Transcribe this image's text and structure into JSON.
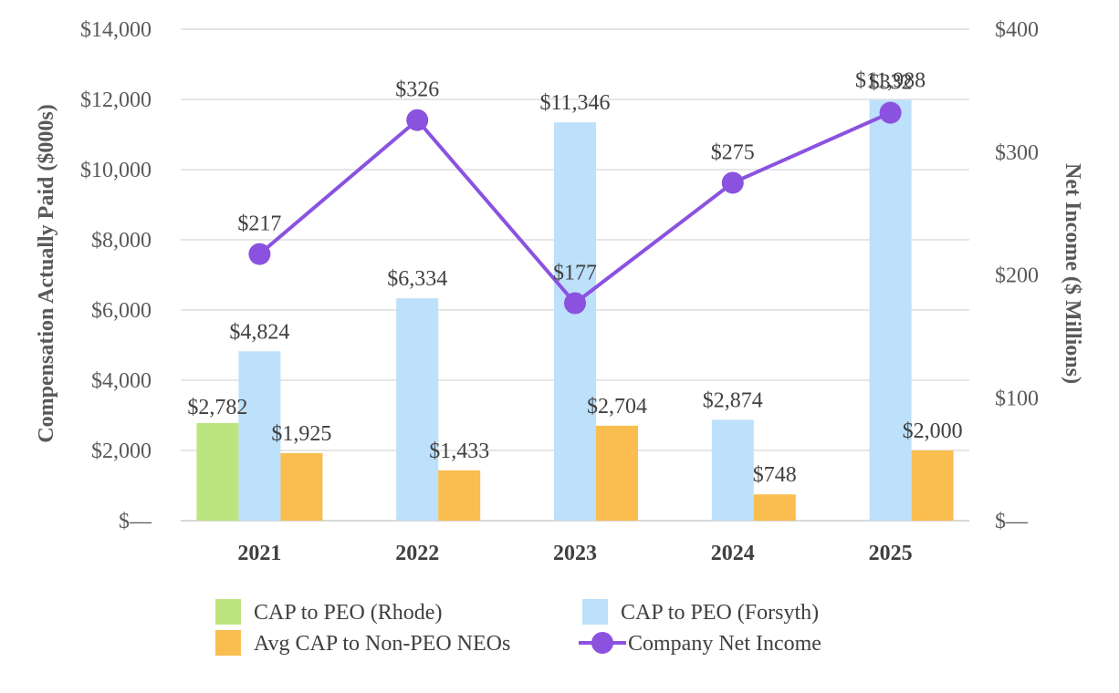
{
  "chart_data": {
    "type": "bar",
    "title": "",
    "categories": [
      "2021",
      "2022",
      "2023",
      "2024",
      "2025"
    ],
    "y_left": {
      "label": "Compensation Actually Paid ($000s)",
      "lim": [
        0,
        14000
      ],
      "ticks": [
        0,
        2000,
        4000,
        6000,
        8000,
        10000,
        12000,
        14000
      ],
      "tick_labels": [
        "$—",
        "$2,000",
        "$4,000",
        "$6,000",
        "$8,000",
        "$10,000",
        "$12,000",
        "$14,000"
      ]
    },
    "y_right": {
      "label": "Net Income ($ Millions)",
      "lim": [
        0,
        400
      ],
      "ticks": [
        0,
        100,
        200,
        300,
        400
      ],
      "tick_labels": [
        "$—",
        "$100",
        "$200",
        "$300",
        "$400"
      ]
    },
    "series": [
      {
        "name": "CAP to PEO (Rhode)",
        "type": "bar",
        "axis": "left",
        "color": "#bde57f",
        "values": [
          2782,
          null,
          null,
          null,
          null
        ],
        "labels": [
          "$2,782",
          "",
          "",
          "",
          ""
        ]
      },
      {
        "name": "CAP to PEO (Forsyth)",
        "type": "bar",
        "axis": "left",
        "color": "#bde0fb",
        "values": [
          4824,
          6334,
          11346,
          2874,
          11988
        ],
        "labels": [
          "$4,824",
          "$6,334",
          "$11,346",
          "$2,874",
          "$11,988"
        ]
      },
      {
        "name": "Avg CAP to Non-PEO NEOs",
        "type": "bar",
        "axis": "left",
        "color": "#f9be4f",
        "values": [
          1925,
          1433,
          2704,
          748,
          2000
        ],
        "labels": [
          "$1,925",
          "$1,433",
          "$2,704",
          "$748",
          "$2,000"
        ]
      },
      {
        "name": "Company Net Income",
        "type": "line",
        "axis": "right",
        "color": "#8b52e0",
        "values": [
          217,
          326,
          177,
          275,
          332
        ],
        "labels": [
          "$217",
          "$326",
          "$177",
          "$275",
          "$332"
        ]
      }
    ],
    "legend": {
      "position": "bottom",
      "items": [
        {
          "name": "CAP to PEO (Rhode)",
          "kind": "bar",
          "color": "#bde57f"
        },
        {
          "name": "CAP to PEO (Forsyth)",
          "kind": "bar",
          "color": "#bde0fb"
        },
        {
          "name": "Avg CAP to Non-PEO NEOs",
          "kind": "bar",
          "color": "#f9be4f"
        },
        {
          "name": "Company Net Income",
          "kind": "line",
          "color": "#8b52e0"
        }
      ]
    }
  }
}
